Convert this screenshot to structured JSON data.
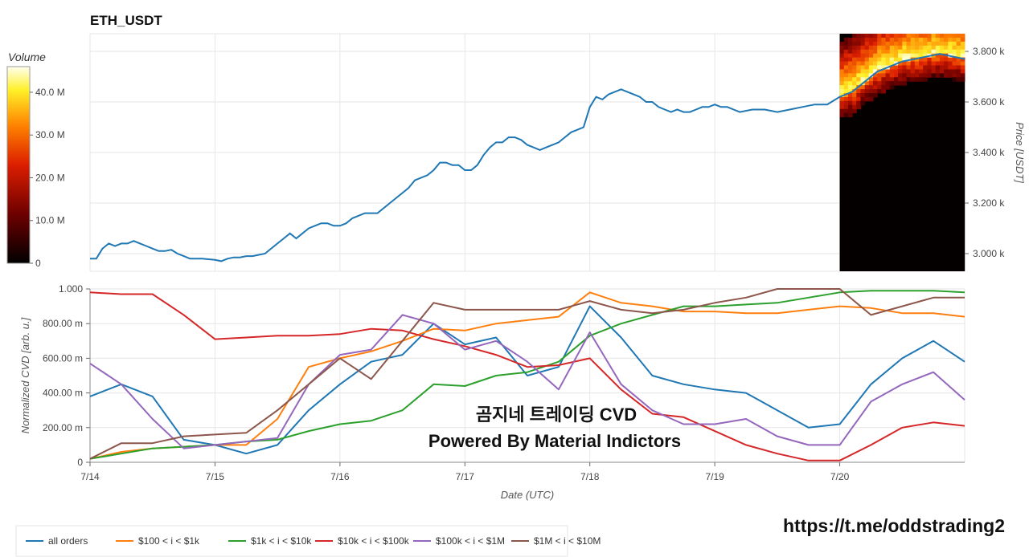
{
  "title": "ETH_USDT",
  "colorbar": {
    "label": "Volume",
    "ticks": [
      "0",
      "10.0 M",
      "20.0 M",
      "30.0 M",
      "40.0 M"
    ],
    "tick_values": [
      0,
      10,
      20,
      30,
      40
    ]
  },
  "overlay_text": {
    "line1": "곰지네 트레이딩 CVD",
    "line2": "Powered By Material Indictors",
    "url": "https://t.me/oddstrading2"
  },
  "chart_data": [
    {
      "type": "line",
      "title": "ETH_USDT",
      "ylabel": "Price [USDT]",
      "yticks": [
        "3.000 k",
        "3.200 k",
        "3.400 k",
        "3.600 k",
        "3.800 k"
      ],
      "ytick_values": [
        3000,
        3200,
        3400,
        3600,
        3800
      ],
      "ylim": [
        2930,
        3870
      ],
      "xlim": [
        0,
        7
      ],
      "grid": true,
      "heatmap_overlay": {
        "x_start": 6.0,
        "x_end": 7.0,
        "colorscale": "black-red-yellow-white"
      },
      "series": [
        {
          "color": "#1f77b4",
          "x": [
            0,
            0.05,
            0.1,
            0.15,
            0.2,
            0.25,
            0.3,
            0.35,
            0.4,
            0.45,
            0.5,
            0.55,
            0.6,
            0.65,
            0.7,
            0.75,
            0.8,
            0.9,
            1.0,
            1.05,
            1.1,
            1.15,
            1.2,
            1.25,
            1.3,
            1.4,
            1.5,
            1.55,
            1.6,
            1.65,
            1.7,
            1.75,
            1.8,
            1.85,
            1.9,
            1.95,
            2.0,
            2.05,
            2.1,
            2.2,
            2.3,
            2.4,
            2.5,
            2.55,
            2.6,
            2.7,
            2.75,
            2.8,
            2.85,
            2.9,
            2.95,
            3.0,
            3.05,
            3.1,
            3.15,
            3.2,
            3.25,
            3.3,
            3.35,
            3.4,
            3.45,
            3.5,
            3.55,
            3.6,
            3.65,
            3.7,
            3.75,
            3.8,
            3.85,
            3.9,
            3.95,
            4.0,
            4.05,
            4.1,
            4.15,
            4.2,
            4.25,
            4.3,
            4.35,
            4.4,
            4.45,
            4.5,
            4.55,
            4.6,
            4.65,
            4.7,
            4.75,
            4.8,
            4.85,
            4.9,
            4.95,
            5.0,
            5.05,
            5.1,
            5.15,
            5.2,
            5.3,
            5.4,
            5.5,
            5.6,
            5.7,
            5.8,
            5.9,
            6.0,
            6.1,
            6.2,
            6.3,
            6.4,
            6.5,
            6.6,
            6.7,
            6.8,
            6.9,
            7.0
          ],
          "values": [
            2980,
            2980,
            3020,
            3040,
            3030,
            3040,
            3040,
            3050,
            3040,
            3030,
            3020,
            3010,
            3010,
            3015,
            3000,
            2990,
            2980,
            2980,
            2975,
            2970,
            2980,
            2985,
            2985,
            2990,
            2990,
            3000,
            3040,
            3060,
            3080,
            3060,
            3080,
            3100,
            3110,
            3120,
            3120,
            3110,
            3110,
            3120,
            3140,
            3160,
            3160,
            3200,
            3240,
            3260,
            3290,
            3310,
            3330,
            3360,
            3360,
            3350,
            3350,
            3330,
            3330,
            3350,
            3390,
            3420,
            3440,
            3440,
            3460,
            3460,
            3450,
            3430,
            3420,
            3410,
            3420,
            3430,
            3440,
            3460,
            3480,
            3490,
            3500,
            3580,
            3620,
            3610,
            3630,
            3640,
            3650,
            3640,
            3630,
            3620,
            3600,
            3600,
            3580,
            3570,
            3560,
            3570,
            3560,
            3560,
            3570,
            3580,
            3580,
            3590,
            3580,
            3580,
            3570,
            3560,
            3570,
            3570,
            3560,
            3570,
            3580,
            3590,
            3590,
            3620,
            3640,
            3680,
            3720,
            3740,
            3760,
            3770,
            3780,
            3790,
            3780,
            3770
          ]
        }
      ]
    },
    {
      "type": "line",
      "xlabel": "Date (UTC)",
      "ylabel": "Normalized CVD [arb. u.]",
      "xticks": [
        "7/14",
        "7/15",
        "7/16",
        "7/17",
        "7/18",
        "7/19",
        "7/20"
      ],
      "xtick_values": [
        0,
        1,
        2,
        3,
        4,
        5,
        6
      ],
      "yticks": [
        "0",
        "200.00 m",
        "400.00 m",
        "600.00 m",
        "800.00 m",
        "1.000"
      ],
      "ytick_values": [
        0,
        0.2,
        0.4,
        0.6,
        0.8,
        1.0
      ],
      "ylim": [
        0,
        1.0
      ],
      "xlim": [
        0,
        7
      ],
      "grid": true,
      "legend_position": "bottom-left",
      "x": [
        0,
        0.25,
        0.5,
        0.75,
        1.0,
        1.25,
        1.5,
        1.75,
        2.0,
        2.25,
        2.5,
        2.75,
        3.0,
        3.25,
        3.5,
        3.75,
        4.0,
        4.25,
        4.5,
        4.75,
        5.0,
        5.25,
        5.5,
        5.75,
        6.0,
        6.25,
        6.5,
        6.75,
        7.0
      ],
      "series": [
        {
          "name": "all orders",
          "color": "#1f77b4",
          "values": [
            0.38,
            0.45,
            0.38,
            0.13,
            0.1,
            0.05,
            0.1,
            0.3,
            0.45,
            0.58,
            0.62,
            0.8,
            0.68,
            0.72,
            0.5,
            0.55,
            0.9,
            0.72,
            0.5,
            0.45,
            0.42,
            0.4,
            0.3,
            0.2,
            0.22,
            0.45,
            0.6,
            0.7,
            0.58
          ]
        },
        {
          "name": "$100 < i < $1k",
          "color": "#ff7f0e",
          "values": [
            0.02,
            0.06,
            0.08,
            0.09,
            0.1,
            0.1,
            0.25,
            0.55,
            0.6,
            0.64,
            0.7,
            0.77,
            0.76,
            0.8,
            0.82,
            0.84,
            0.98,
            0.92,
            0.9,
            0.87,
            0.87,
            0.86,
            0.86,
            0.88,
            0.9,
            0.89,
            0.86,
            0.86,
            0.84
          ]
        },
        {
          "name": "$1k < i < $10k",
          "color": "#2ca02c",
          "values": [
            0.02,
            0.05,
            0.08,
            0.09,
            0.1,
            0.12,
            0.13,
            0.18,
            0.22,
            0.24,
            0.3,
            0.45,
            0.44,
            0.5,
            0.52,
            0.58,
            0.73,
            0.8,
            0.85,
            0.9,
            0.9,
            0.91,
            0.92,
            0.95,
            0.98,
            0.99,
            0.99,
            0.99,
            0.98
          ]
        },
        {
          "name": "$10k < i < $100k",
          "color": "#d62728",
          "values": [
            0.98,
            0.97,
            0.97,
            0.85,
            0.71,
            0.72,
            0.73,
            0.73,
            0.74,
            0.77,
            0.76,
            0.71,
            0.67,
            0.62,
            0.55,
            0.56,
            0.6,
            0.42,
            0.28,
            0.26,
            0.18,
            0.1,
            0.05,
            0.01,
            0.01,
            0.1,
            0.2,
            0.23,
            0.21
          ]
        },
        {
          "name": "$100k < i < $1M",
          "color": "#9467bd",
          "values": [
            0.57,
            0.45,
            0.25,
            0.08,
            0.1,
            0.12,
            0.14,
            0.45,
            0.62,
            0.65,
            0.85,
            0.8,
            0.65,
            0.7,
            0.58,
            0.42,
            0.75,
            0.45,
            0.3,
            0.22,
            0.22,
            0.25,
            0.15,
            0.1,
            0.1,
            0.35,
            0.45,
            0.52,
            0.36
          ]
        },
        {
          "name": "$1M < i < $10M",
          "color": "#8c564b",
          "values": [
            0.02,
            0.11,
            0.11,
            0.15,
            0.16,
            0.17,
            0.3,
            0.45,
            0.6,
            0.48,
            0.7,
            0.92,
            0.88,
            0.88,
            0.88,
            0.88,
            0.93,
            0.88,
            0.86,
            0.88,
            0.92,
            0.95,
            1.0,
            1.0,
            1.0,
            0.85,
            0.9,
            0.95,
            0.95
          ]
        }
      ]
    }
  ]
}
